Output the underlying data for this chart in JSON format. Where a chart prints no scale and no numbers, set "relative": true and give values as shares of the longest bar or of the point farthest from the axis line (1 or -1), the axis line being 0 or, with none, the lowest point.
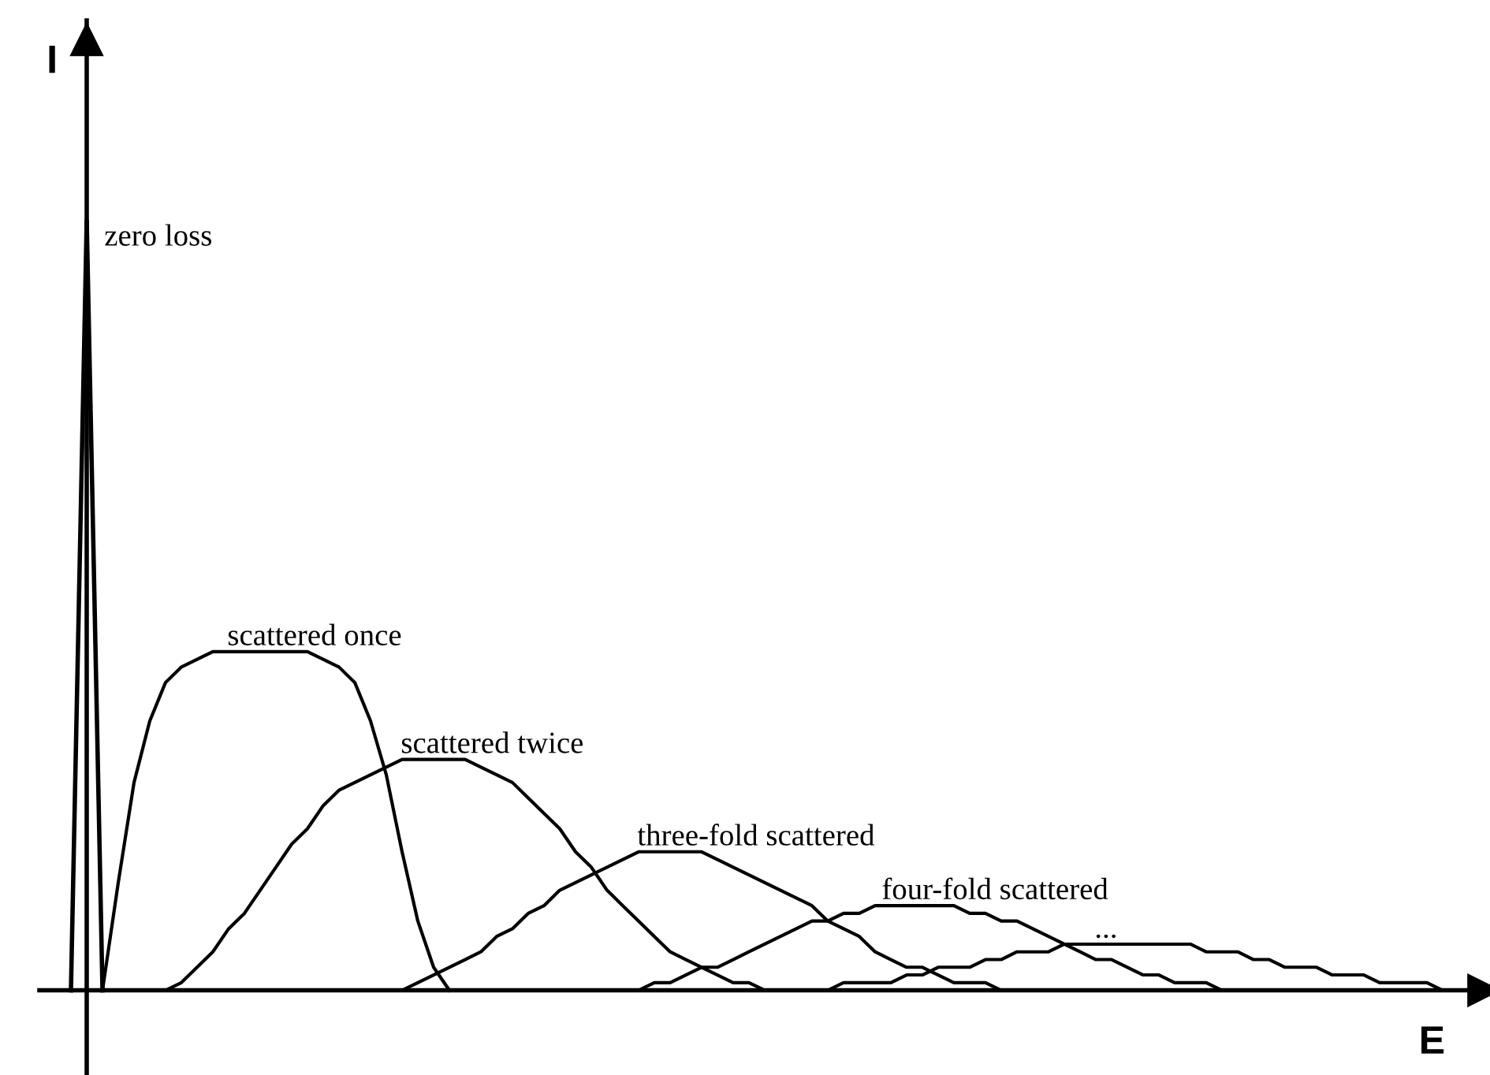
{
  "chart_data": {
    "type": "line",
    "relative": true,
    "xlabel": "E",
    "ylabel": "I",
    "categories": [
      null,
      null,
      null,
      null,
      null,
      null,
      null,
      null,
      null,
      null,
      null,
      null,
      null,
      null,
      null,
      null,
      null,
      null,
      null,
      null,
      null,
      null,
      null,
      null,
      null,
      null,
      null,
      null,
      null,
      null,
      null,
      null,
      null,
      null,
      null,
      null,
      null,
      null,
      null,
      null,
      null,
      null,
      null,
      null,
      null,
      null,
      null,
      null,
      null,
      null,
      null,
      null,
      null,
      null,
      null,
      null,
      null,
      null,
      null,
      null,
      null,
      null,
      null,
      null,
      null,
      null,
      null,
      null,
      null,
      null,
      null,
      null,
      null,
      null,
      null,
      null,
      null,
      null,
      null,
      null,
      null,
      null,
      null,
      null,
      null,
      null,
      null,
      null,
      null,
      null
    ],
    "series": [
      {
        "name": "zero loss",
        "color": "#000000",
        "values": [
          null,
          0,
          1,
          0,
          null,
          null,
          null,
          null,
          null,
          null,
          null,
          null,
          null,
          null,
          null,
          null,
          null,
          null,
          null,
          null,
          null,
          null,
          null,
          null,
          null,
          null,
          null,
          null,
          null,
          null,
          null,
          null,
          null,
          null,
          null,
          null,
          null,
          null,
          null,
          null,
          null,
          null,
          null,
          null,
          null,
          null,
          null,
          null,
          null,
          null,
          null,
          null,
          null,
          null,
          null,
          null,
          null,
          null,
          null,
          null,
          null,
          null,
          null,
          null,
          null,
          null,
          null,
          null,
          null,
          null,
          null,
          null,
          null,
          null,
          null,
          null,
          null,
          null,
          null,
          null,
          null,
          null,
          null,
          null,
          null,
          null,
          null,
          null,
          null,
          null
        ]
      },
      {
        "name": "scattered once",
        "color": "#000000",
        "values": [
          null,
          null,
          null,
          0,
          0.14,
          0.27,
          0.35,
          0.4,
          0.42,
          0.43,
          0.44,
          0.44,
          0.44,
          0.44,
          0.44,
          0.44,
          0.44,
          0.43,
          0.42,
          0.4,
          0.35,
          0.28,
          0.18,
          0.09,
          0.03,
          0,
          null,
          null,
          null,
          null,
          null,
          null,
          null,
          null,
          null,
          null,
          null,
          null,
          null,
          null,
          null,
          null,
          null,
          null,
          null,
          null,
          null,
          null,
          null,
          null,
          null,
          null,
          null,
          null,
          null,
          null,
          null,
          null,
          null,
          null,
          null,
          null,
          null,
          null,
          null,
          null,
          null,
          null,
          null,
          null,
          null,
          null,
          null,
          null,
          null,
          null,
          null,
          null,
          null,
          null,
          null,
          null,
          null,
          null,
          null,
          null,
          null,
          null,
          null,
          null
        ]
      },
      {
        "name": "scattered twice",
        "color": "#000000",
        "values": [
          null,
          null,
          null,
          null,
          null,
          null,
          null,
          0,
          0.01,
          0.03,
          0.05,
          0.08,
          0.1,
          0.13,
          0.16,
          0.19,
          0.21,
          0.24,
          0.26,
          0.27,
          0.28,
          0.29,
          0.3,
          0.3,
          0.3,
          0.3,
          0.3,
          0.29,
          0.28,
          0.27,
          0.25,
          0.23,
          0.21,
          0.18,
          0.16,
          0.13,
          0.11,
          0.09,
          0.07,
          0.05,
          0.04,
          0.03,
          0.02,
          0.01,
          0.01,
          0,
          null,
          null,
          null,
          null,
          null,
          null,
          null,
          null,
          null,
          null,
          null,
          null,
          null,
          null,
          null,
          null,
          null,
          null,
          null,
          null,
          null,
          null,
          null,
          null,
          null,
          null,
          null,
          null,
          null,
          null,
          null,
          null,
          null,
          null,
          null,
          null,
          null,
          null,
          null,
          null,
          null,
          null,
          null,
          null
        ]
      },
      {
        "name": "three-fold scattered",
        "color": "#000000",
        "values": [
          null,
          null,
          null,
          null,
          null,
          null,
          null,
          null,
          null,
          null,
          null,
          null,
          null,
          null,
          null,
          null,
          null,
          null,
          null,
          null,
          null,
          null,
          0,
          0.01,
          0.02,
          0.03,
          0.04,
          0.05,
          0.07,
          0.08,
          0.1,
          0.11,
          0.13,
          0.14,
          0.15,
          0.16,
          0.17,
          0.18,
          0.18,
          0.18,
          0.18,
          0.18,
          0.17,
          0.16,
          0.15,
          0.14,
          0.13,
          0.12,
          0.11,
          0.09,
          0.08,
          0.07,
          0.05,
          0.04,
          0.03,
          0.03,
          0.02,
          0.01,
          0.01,
          0.01,
          0,
          0,
          null,
          null,
          null,
          null,
          null,
          null,
          null,
          null,
          null,
          null,
          null,
          null,
          null,
          null,
          null,
          null,
          null,
          null,
          null,
          null,
          null,
          null,
          null,
          null,
          null,
          null,
          null,
          null
        ]
      },
      {
        "name": "four-fold scattered",
        "color": "#000000",
        "values": [
          null,
          null,
          null,
          null,
          null,
          null,
          null,
          null,
          null,
          null,
          null,
          null,
          null,
          null,
          null,
          null,
          null,
          null,
          null,
          null,
          null,
          null,
          null,
          null,
          null,
          null,
          null,
          null,
          null,
          null,
          null,
          null,
          null,
          null,
          null,
          null,
          null,
          0,
          0.01,
          0.01,
          0.02,
          0.03,
          0.03,
          0.04,
          0.05,
          0.06,
          0.07,
          0.08,
          0.09,
          0.09,
          0.1,
          0.1,
          0.11,
          0.11,
          0.11,
          0.11,
          0.11,
          0.11,
          0.1,
          0.1,
          0.09,
          0.09,
          0.08,
          0.07,
          0.06,
          0.05,
          0.04,
          0.04,
          0.03,
          0.02,
          0.02,
          0.01,
          0.01,
          0.01,
          0,
          0,
          null,
          null,
          null,
          null,
          null,
          null,
          null,
          null,
          null,
          null,
          null,
          null,
          null,
          null
        ]
      },
      {
        "name": "...",
        "color": "#000000",
        "values": [
          null,
          null,
          null,
          null,
          null,
          null,
          null,
          null,
          null,
          null,
          null,
          null,
          null,
          null,
          null,
          null,
          null,
          null,
          null,
          null,
          null,
          null,
          null,
          null,
          null,
          null,
          null,
          null,
          null,
          null,
          null,
          null,
          null,
          null,
          null,
          null,
          null,
          null,
          null,
          null,
          null,
          null,
          null,
          null,
          null,
          null,
          null,
          null,
          null,
          0,
          0.01,
          0.01,
          0.01,
          0.01,
          0.02,
          0.02,
          0.03,
          0.03,
          0.03,
          0.04,
          0.04,
          0.05,
          0.05,
          0.05,
          0.06,
          0.06,
          0.06,
          0.06,
          0.06,
          0.06,
          0.06,
          0.06,
          0.06,
          0.05,
          0.05,
          0.05,
          0.04,
          0.04,
          0.03,
          0.03,
          0.03,
          0.02,
          0.02,
          0.02,
          0.01,
          0.01,
          0.01,
          0.01,
          0,
          0
        ]
      }
    ]
  }
}
